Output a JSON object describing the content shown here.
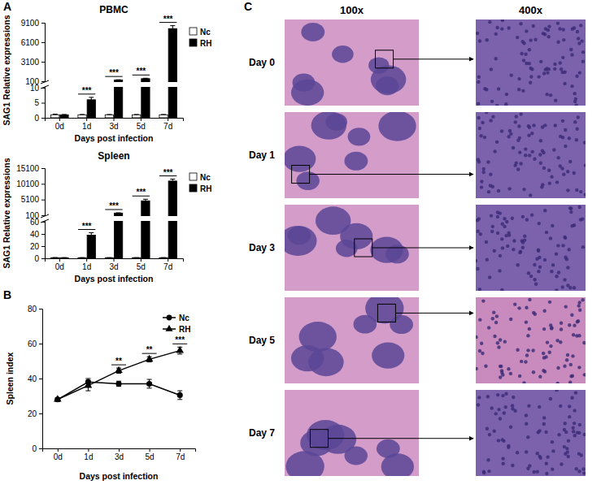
{
  "panels": [
    "A",
    "B",
    "C"
  ],
  "chart_data": [
    {
      "type": "bar",
      "title": "PBMC",
      "x_label": "Days post infection",
      "y_label": "SAG1 Relative expressions",
      "categories": [
        "0d",
        "1d",
        "3d",
        "5d",
        "7d"
      ],
      "series": [
        {
          "name": "Nc",
          "color": "#ffffff",
          "values": [
            1,
            1,
            1,
            1,
            1
          ],
          "errors": [
            0.2,
            0.1,
            0.1,
            0.1,
            0.1
          ]
        },
        {
          "name": "RH",
          "color": "#000000",
          "values": [
            1,
            6,
            300,
            500,
            8200
          ],
          "errors": [
            0.1,
            0.8,
            30,
            60,
            450
          ]
        }
      ],
      "ylim": [
        0,
        9100
      ],
      "ybreak": [
        10,
        100
      ],
      "yticks": [
        0,
        5,
        10,
        100,
        3100,
        6100,
        9100
      ],
      "annotations": [
        {
          "category": "1d",
          "text": "***"
        },
        {
          "category": "3d",
          "text": "***"
        },
        {
          "category": "5d",
          "text": "***"
        },
        {
          "category": "7d",
          "text": "***"
        }
      ],
      "legend": "upper right"
    },
    {
      "type": "bar",
      "title": "Spleen",
      "x_label": "Days post infection",
      "y_label": "SAG1 Relative expressions",
      "categories": [
        "0d",
        "1d",
        "3d",
        "5d",
        "7d"
      ],
      "series": [
        {
          "name": "Nc",
          "color": "#ffffff",
          "values": [
            1,
            1,
            1,
            1,
            1
          ],
          "errors": [
            0.2,
            0.1,
            0.1,
            0.1,
            0.1
          ]
        },
        {
          "name": "RH",
          "color": "#000000",
          "values": [
            1,
            38,
            800,
            4700,
            11000
          ],
          "errors": [
            0.1,
            4,
            80,
            500,
            600
          ]
        }
      ],
      "ylim": [
        0,
        15100
      ],
      "ybreak": [
        60,
        100
      ],
      "yticks": [
        0,
        20,
        40,
        60,
        100,
        5100,
        10100,
        15100
      ],
      "annotations": [
        {
          "category": "1d",
          "text": "***"
        },
        {
          "category": "3d",
          "text": "***"
        },
        {
          "category": "5d",
          "text": "***"
        },
        {
          "category": "7d",
          "text": "***"
        }
      ],
      "legend": "upper right"
    },
    {
      "type": "line",
      "x_label": "Days post infection",
      "y_label": "Spleen index",
      "categories": [
        "0d",
        "1d",
        "3d",
        "5d",
        "7d"
      ],
      "series": [
        {
          "name": "Nc",
          "color": "#000000",
          "marker": "circle",
          "line_style": "solid",
          "values": [
            28,
            38,
            37,
            37,
            30.5
          ],
          "errors": [
            1,
            2,
            1.5,
            2.5,
            2.5
          ]
        },
        {
          "name": "RH",
          "color": "#000000",
          "marker": "triangle",
          "line_style": "solid",
          "values": [
            28,
            36,
            44.5,
            51,
            56
          ],
          "errors": [
            1,
            3,
            1.5,
            1.5,
            2
          ]
        }
      ],
      "ylim": [
        0,
        80
      ],
      "yticks": [
        0,
        20,
        40,
        60,
        80
      ],
      "annotations": [
        {
          "category": "3d",
          "text": "**"
        },
        {
          "category": "5d",
          "text": "**"
        },
        {
          "category": "7d",
          "text": "***"
        }
      ],
      "legend": "upper right"
    }
  ],
  "images": {
    "columns": [
      "100x",
      "400x"
    ],
    "rows": [
      "Day 0",
      "Day 1",
      "Day 3",
      "Day 5",
      "Day 7"
    ]
  }
}
